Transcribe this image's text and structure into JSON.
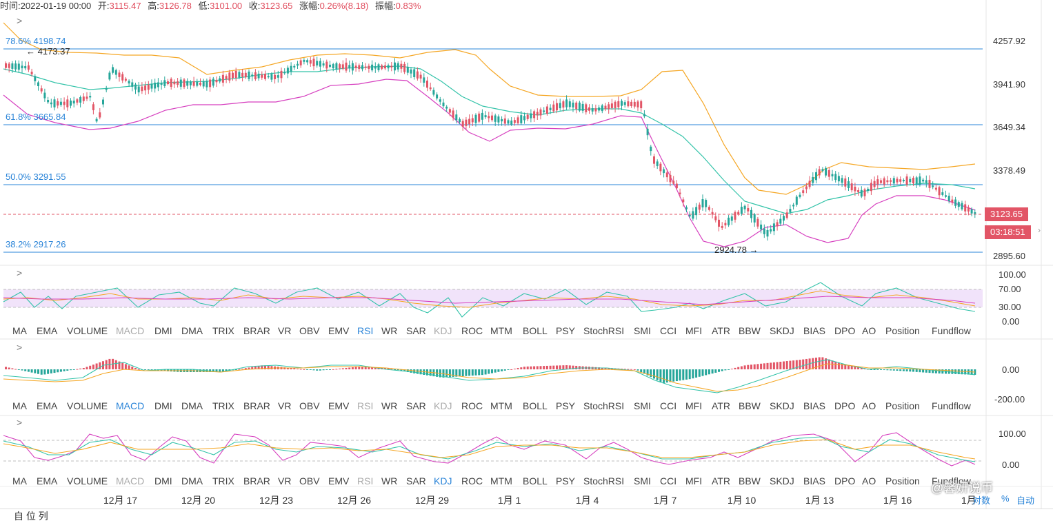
{
  "header": {
    "time_label": "时间:",
    "time": "2022-01-19 00:00",
    "open_label": "开:",
    "open": "3115.47",
    "high_label": "高:",
    "high": "3126.78",
    "low_label": "低:",
    "low": "3101.00",
    "close_label": "收:",
    "close": "3123.65",
    "change_label": "涨幅:",
    "change": "0.26%(8.18)",
    "amplitude_label": "振幅:",
    "amplitude": "0.83%"
  },
  "price_axis": [
    "4257.92",
    "3941.90",
    "3649.34",
    "3378.49",
    "2895.60"
  ],
  "fib_labels": [
    "78.6% 4198.74",
    "61.8% 3665.84",
    "50.0% 3291.55",
    "38.2% 2917.26"
  ],
  "annotations": {
    "high_marker": "← 4173.37",
    "low_marker": "2924.78 →"
  },
  "current_price": "3123.65",
  "countdown": "03:18:51",
  "rsi_axis": [
    "100.00",
    "70.00",
    "30.00",
    "0.00"
  ],
  "macd_axis": [
    "0.00",
    "-200.00"
  ],
  "kdj_axis": [
    "100.00",
    "0.00"
  ],
  "indicator_tabs": [
    "MA",
    "EMA",
    "VOLUME",
    "MACD",
    "DMI",
    "DMA",
    "TRIX",
    "BRAR",
    "VR",
    "OBV",
    "EMV",
    "RSI",
    "WR",
    "SAR",
    "KDJ",
    "ROC",
    "MTM",
    "BOLL",
    "PSY",
    "StochRSI",
    "SMI",
    "CCI",
    "MFI",
    "ATR",
    "BBW",
    "SKDJ",
    "BIAS",
    "DPO",
    "AO",
    "Position",
    "Fundflow"
  ],
  "dates": [
    "12月 17",
    "12月 20",
    "12月 23",
    "12月 26",
    "12月 29",
    "1月 1",
    "1月 4",
    "1月 7",
    "1月 10",
    "1月 13",
    "1月 16",
    "1月"
  ],
  "bottom_controls": {
    "log": "对数",
    "percent": "%",
    "auto": "自动"
  },
  "watermark": "@馨妍说币",
  "bottom_strip": "自 位 列",
  "colors": {
    "up": "#e25566",
    "down": "#26a69a",
    "fib": "#2a84d8",
    "boll_upper": "#f5a623",
    "boll_mid": "#33c3a9",
    "boll_lower": "#d63fbf",
    "accent": "#2a84d8"
  }
}
